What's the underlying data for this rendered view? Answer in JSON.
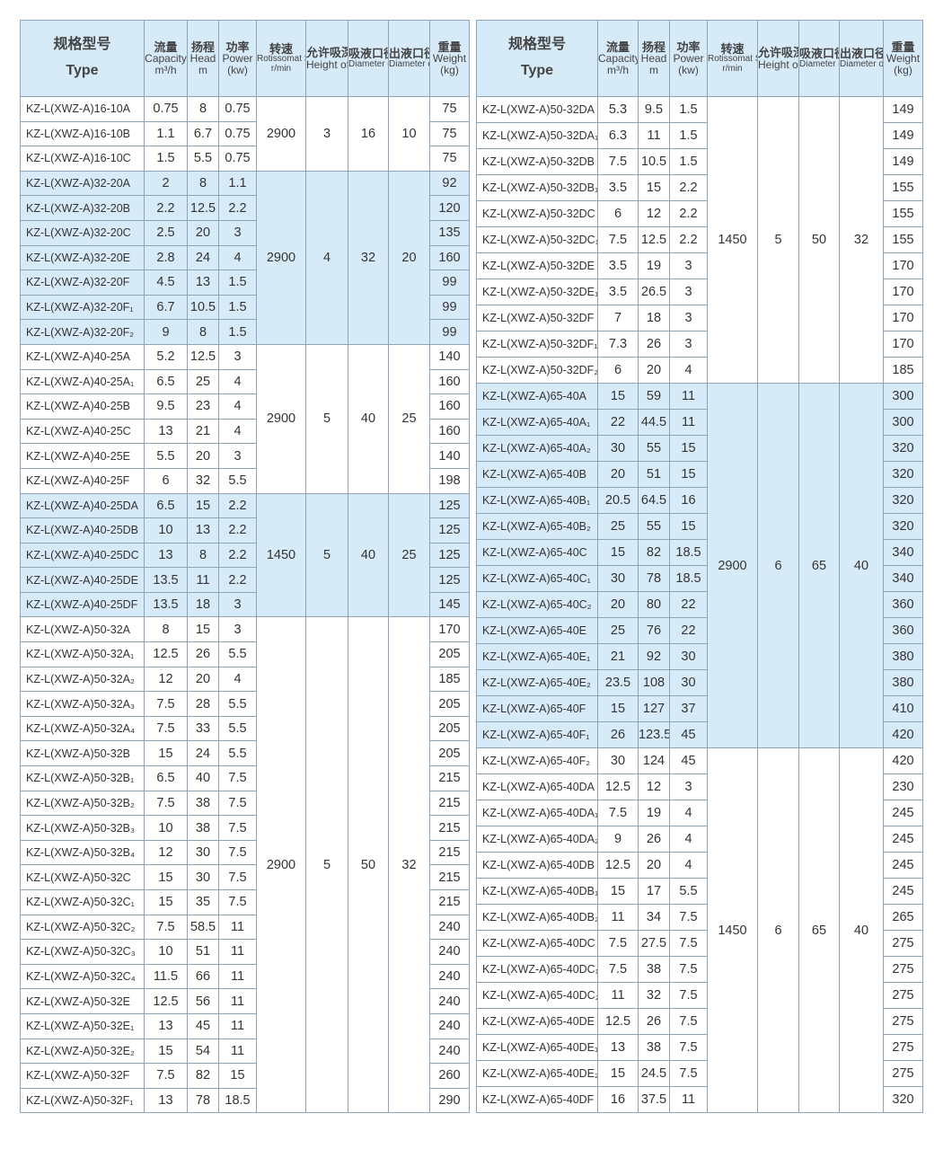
{
  "header": {
    "type_cn": "规格型号",
    "type_en": "Type",
    "cap_cn": "流量",
    "cap_en": "Capacity",
    "cap_unit": "m³/h",
    "head_cn": "扬程",
    "head_en": "Head",
    "head_unit": "m",
    "power_cn": "功率",
    "power_en": "Power",
    "power_unit": "(kw)",
    "speed_cn": "转速",
    "speed_en": "Rotissomat Speed",
    "speed_unit": "r/min",
    "height_cn": "允许吸深",
    "height_en": "Height of Suciton",
    "inlet_cn": "吸液口径",
    "inlet_en": "Diameter of Inlet",
    "outlet_cn": "出液口径",
    "outlet_en": "Diameter of Outlet",
    "weight_cn": "重量",
    "weight_en": "Weight",
    "weight_unit": "(kg)"
  },
  "colors": {
    "highlight": "#d7eaf7",
    "border": "#8fa3b8"
  },
  "left": {
    "groups": [
      {
        "shaded": false,
        "speed": "2900",
        "height": "3",
        "inlet": "16",
        "outlet": "10",
        "rows": [
          [
            "KZ-L(XWZ-A)16-10A",
            "0.75",
            "8",
            "0.75",
            "75"
          ],
          [
            "KZ-L(XWZ-A)16-10B",
            "1.1",
            "6.7",
            "0.75",
            "75"
          ],
          [
            "KZ-L(XWZ-A)16-10C",
            "1.5",
            "5.5",
            "0.75",
            "75"
          ]
        ]
      },
      {
        "shaded": true,
        "speed": "2900",
        "height": "4",
        "inlet": "32",
        "outlet": "20",
        "rows": [
          [
            "KZ-L(XWZ-A)32-20A",
            "2",
            "8",
            "1.1",
            "92"
          ],
          [
            "KZ-L(XWZ-A)32-20B",
            "2.2",
            "12.5",
            "2.2",
            "120"
          ],
          [
            "KZ-L(XWZ-A)32-20C",
            "2.5",
            "20",
            "3",
            "135"
          ],
          [
            "KZ-L(XWZ-A)32-20E",
            "2.8",
            "24",
            "4",
            "160"
          ],
          [
            "KZ-L(XWZ-A)32-20F",
            "4.5",
            "13",
            "1.5",
            "99"
          ],
          [
            "KZ-L(XWZ-A)32-20F₁",
            "6.7",
            "10.5",
            "1.5",
            "99"
          ],
          [
            "KZ-L(XWZ-A)32-20F₂",
            "9",
            "8",
            "1.5",
            "99"
          ]
        ]
      },
      {
        "shaded": false,
        "speed": "2900",
        "height": "5",
        "inlet": "40",
        "outlet": "25",
        "rows": [
          [
            "KZ-L(XWZ-A)40-25A",
            "5.2",
            "12.5",
            "3",
            "140"
          ],
          [
            "KZ-L(XWZ-A)40-25A₁",
            "6.5",
            "25",
            "4",
            "160"
          ],
          [
            "KZ-L(XWZ-A)40-25B",
            "9.5",
            "23",
            "4",
            "160"
          ],
          [
            "KZ-L(XWZ-A)40-25C",
            "13",
            "21",
            "4",
            "160"
          ],
          [
            "KZ-L(XWZ-A)40-25E",
            "5.5",
            "20",
            "3",
            "140"
          ],
          [
            "KZ-L(XWZ-A)40-25F",
            "6",
            "32",
            "5.5",
            "198"
          ]
        ]
      },
      {
        "shaded": true,
        "speed": "1450",
        "height": "5",
        "inlet": "40",
        "outlet": "25",
        "rows": [
          [
            "KZ-L(XWZ-A)40-25DA",
            "6.5",
            "15",
            "2.2",
            "125"
          ],
          [
            "KZ-L(XWZ-A)40-25DB",
            "10",
            "13",
            "2.2",
            "125"
          ],
          [
            "KZ-L(XWZ-A)40-25DC",
            "13",
            "8",
            "2.2",
            "125"
          ],
          [
            "KZ-L(XWZ-A)40-25DE",
            "13.5",
            "11",
            "2.2",
            "125"
          ],
          [
            "KZ-L(XWZ-A)40-25DF",
            "13.5",
            "18",
            "3",
            "145"
          ]
        ]
      },
      {
        "shaded": false,
        "speed": "2900",
        "height": "5",
        "inlet": "50",
        "outlet": "32",
        "rows": [
          [
            "KZ-L(XWZ-A)50-32A",
            "8",
            "15",
            "3",
            "170"
          ],
          [
            "KZ-L(XWZ-A)50-32A₁",
            "12.5",
            "26",
            "5.5",
            "205"
          ],
          [
            "KZ-L(XWZ-A)50-32A₂",
            "12",
            "20",
            "4",
            "185"
          ],
          [
            "KZ-L(XWZ-A)50-32A₃",
            "7.5",
            "28",
            "5.5",
            "205"
          ],
          [
            "KZ-L(XWZ-A)50-32A₄",
            "7.5",
            "33",
            "5.5",
            "205"
          ],
          [
            "KZ-L(XWZ-A)50-32B",
            "15",
            "24",
            "5.5",
            "205"
          ],
          [
            "KZ-L(XWZ-A)50-32B₁",
            "6.5",
            "40",
            "7.5",
            "215"
          ],
          [
            "KZ-L(XWZ-A)50-32B₂",
            "7.5",
            "38",
            "7.5",
            "215"
          ],
          [
            "KZ-L(XWZ-A)50-32B₃",
            "10",
            "38",
            "7.5",
            "215"
          ],
          [
            "KZ-L(XWZ-A)50-32B₄",
            "12",
            "30",
            "7.5",
            "215"
          ],
          [
            "KZ-L(XWZ-A)50-32C",
            "15",
            "30",
            "7.5",
            "215"
          ],
          [
            "KZ-L(XWZ-A)50-32C₁",
            "15",
            "35",
            "7.5",
            "215"
          ],
          [
            "KZ-L(XWZ-A)50-32C₂",
            "7.5",
            "58.5",
            "11",
            "240"
          ],
          [
            "KZ-L(XWZ-A)50-32C₃",
            "10",
            "51",
            "11",
            "240"
          ],
          [
            "KZ-L(XWZ-A)50-32C₄",
            "11.5",
            "66",
            "11",
            "240"
          ],
          [
            "KZ-L(XWZ-A)50-32E",
            "12.5",
            "56",
            "11",
            "240"
          ],
          [
            "KZ-L(XWZ-A)50-32E₁",
            "13",
            "45",
            "11",
            "240"
          ],
          [
            "KZ-L(XWZ-A)50-32E₂",
            "15",
            "54",
            "11",
            "240"
          ],
          [
            "KZ-L(XWZ-A)50-32F",
            "7.5",
            "82",
            "15",
            "260"
          ],
          [
            "KZ-L(XWZ-A)50-32F₁",
            "13",
            "78",
            "18.5",
            "290"
          ]
        ]
      }
    ]
  },
  "right": {
    "groups": [
      {
        "shaded": false,
        "speed": "1450",
        "height": "5",
        "inlet": "50",
        "outlet": "32",
        "rows": [
          [
            "KZ-L(XWZ-A)50-32DA",
            "5.3",
            "9.5",
            "1.5",
            "149"
          ],
          [
            "KZ-L(XWZ-A)50-32DA₁",
            "6.3",
            "11",
            "1.5",
            "149"
          ],
          [
            "KZ-L(XWZ-A)50-32DB",
            "7.5",
            "10.5",
            "1.5",
            "149"
          ],
          [
            "KZ-L(XWZ-A)50-32DB₁",
            "3.5",
            "15",
            "2.2",
            "155"
          ],
          [
            "KZ-L(XWZ-A)50-32DC",
            "6",
            "12",
            "2.2",
            "155"
          ],
          [
            "KZ-L(XWZ-A)50-32DC₁",
            "7.5",
            "12.5",
            "2.2",
            "155"
          ],
          [
            "KZ-L(XWZ-A)50-32DE",
            "3.5",
            "19",
            "3",
            "170"
          ],
          [
            "KZ-L(XWZ-A)50-32DE₁",
            "3.5",
            "26.5",
            "3",
            "170"
          ],
          [
            "KZ-L(XWZ-A)50-32DF",
            "7",
            "18",
            "3",
            "170"
          ],
          [
            "KZ-L(XWZ-A)50-32DF₁",
            "7.3",
            "26",
            "3",
            "170"
          ],
          [
            "KZ-L(XWZ-A)50-32DF₂",
            "6",
            "20",
            "4",
            "185"
          ]
        ]
      },
      {
        "shaded": true,
        "speed": "2900",
        "height": "6",
        "inlet": "65",
        "outlet": "40",
        "rows": [
          [
            "KZ-L(XWZ-A)65-40A",
            "15",
            "59",
            "11",
            "300"
          ],
          [
            "KZ-L(XWZ-A)65-40A₁",
            "22",
            "44.5",
            "11",
            "300"
          ],
          [
            "KZ-L(XWZ-A)65-40A₂",
            "30",
            "55",
            "15",
            "320"
          ],
          [
            "KZ-L(XWZ-A)65-40B",
            "20",
            "51",
            "15",
            "320"
          ],
          [
            "KZ-L(XWZ-A)65-40B₁",
            "20.5",
            "64.5",
            "16",
            "320"
          ],
          [
            "KZ-L(XWZ-A)65-40B₂",
            "25",
            "55",
            "15",
            "320"
          ],
          [
            "KZ-L(XWZ-A)65-40C",
            "15",
            "82",
            "18.5",
            "340"
          ],
          [
            "KZ-L(XWZ-A)65-40C₁",
            "30",
            "78",
            "18.5",
            "340"
          ],
          [
            "KZ-L(XWZ-A)65-40C₂",
            "20",
            "80",
            "22",
            "360"
          ],
          [
            "KZ-L(XWZ-A)65-40E",
            "25",
            "76",
            "22",
            "360"
          ],
          [
            "KZ-L(XWZ-A)65-40E₁",
            "21",
            "92",
            "30",
            "380"
          ],
          [
            "KZ-L(XWZ-A)65-40E₂",
            "23.5",
            "108",
            "30",
            "380"
          ],
          [
            "KZ-L(XWZ-A)65-40F",
            "15",
            "127",
            "37",
            "410"
          ],
          [
            "KZ-L(XWZ-A)65-40F₁",
            "26",
            "123.5",
            "45",
            "420"
          ]
        ]
      },
      {
        "shaded": false,
        "speed": "1450",
        "height": "6",
        "inlet": "65",
        "outlet": "40",
        "rows": [
          [
            "KZ-L(XWZ-A)65-40F₂",
            "30",
            "124",
            "45",
            "420"
          ],
          [
            "KZ-L(XWZ-A)65-40DA",
            "12.5",
            "12",
            "3",
            "230"
          ],
          [
            "KZ-L(XWZ-A)65-40DA₁",
            "7.5",
            "19",
            "4",
            "245"
          ],
          [
            "KZ-L(XWZ-A)65-40DA₂",
            "9",
            "26",
            "4",
            "245"
          ],
          [
            "KZ-L(XWZ-A)65-40DB",
            "12.5",
            "20",
            "4",
            "245"
          ],
          [
            "KZ-L(XWZ-A)65-40DB₁",
            "15",
            "17",
            "5.5",
            "245"
          ],
          [
            "KZ-L(XWZ-A)65-40DB₂",
            "11",
            "34",
            "7.5",
            "265"
          ],
          [
            "KZ-L(XWZ-A)65-40DC",
            "7.5",
            "27.5",
            "7.5",
            "275"
          ],
          [
            "KZ-L(XWZ-A)65-40DC₁",
            "7.5",
            "38",
            "7.5",
            "275"
          ],
          [
            "KZ-L(XWZ-A)65-40DC₂",
            "11",
            "32",
            "7.5",
            "275"
          ],
          [
            "KZ-L(XWZ-A)65-40DE",
            "12.5",
            "26",
            "7.5",
            "275"
          ],
          [
            "KZ-L(XWZ-A)65-40DE₁",
            "13",
            "38",
            "7.5",
            "275"
          ],
          [
            "KZ-L(XWZ-A)65-40DE₂",
            "15",
            "24.5",
            "7.5",
            "275"
          ],
          [
            "KZ-L(XWZ-A)65-40DF",
            "16",
            "37.5",
            "11",
            "320"
          ]
        ]
      }
    ]
  }
}
